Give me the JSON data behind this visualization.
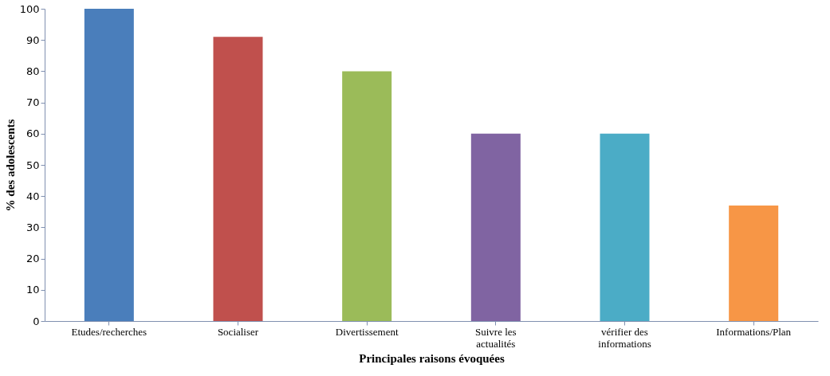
{
  "chart_data": {
    "type": "bar",
    "xlabel": "Principales raisons évoquées",
    "ylabel": "% des adolescents",
    "categories": [
      "Etudes/recherches",
      "Socialiser",
      "Divertissement",
      "Suivre les actualités",
      "vérifier des informations",
      "Informations/Plan"
    ],
    "values": [
      100,
      91,
      80,
      60,
      60,
      37
    ],
    "colors": [
      "#4a7ebb",
      "#c0504d",
      "#9bbb59",
      "#8064a2",
      "#4bacc6",
      "#f79646"
    ],
    "ylim": [
      0,
      100
    ],
    "yticks": [
      0,
      10,
      20,
      30,
      40,
      50,
      60,
      70,
      80,
      90,
      100
    ],
    "grid": false,
    "legend": false
  }
}
